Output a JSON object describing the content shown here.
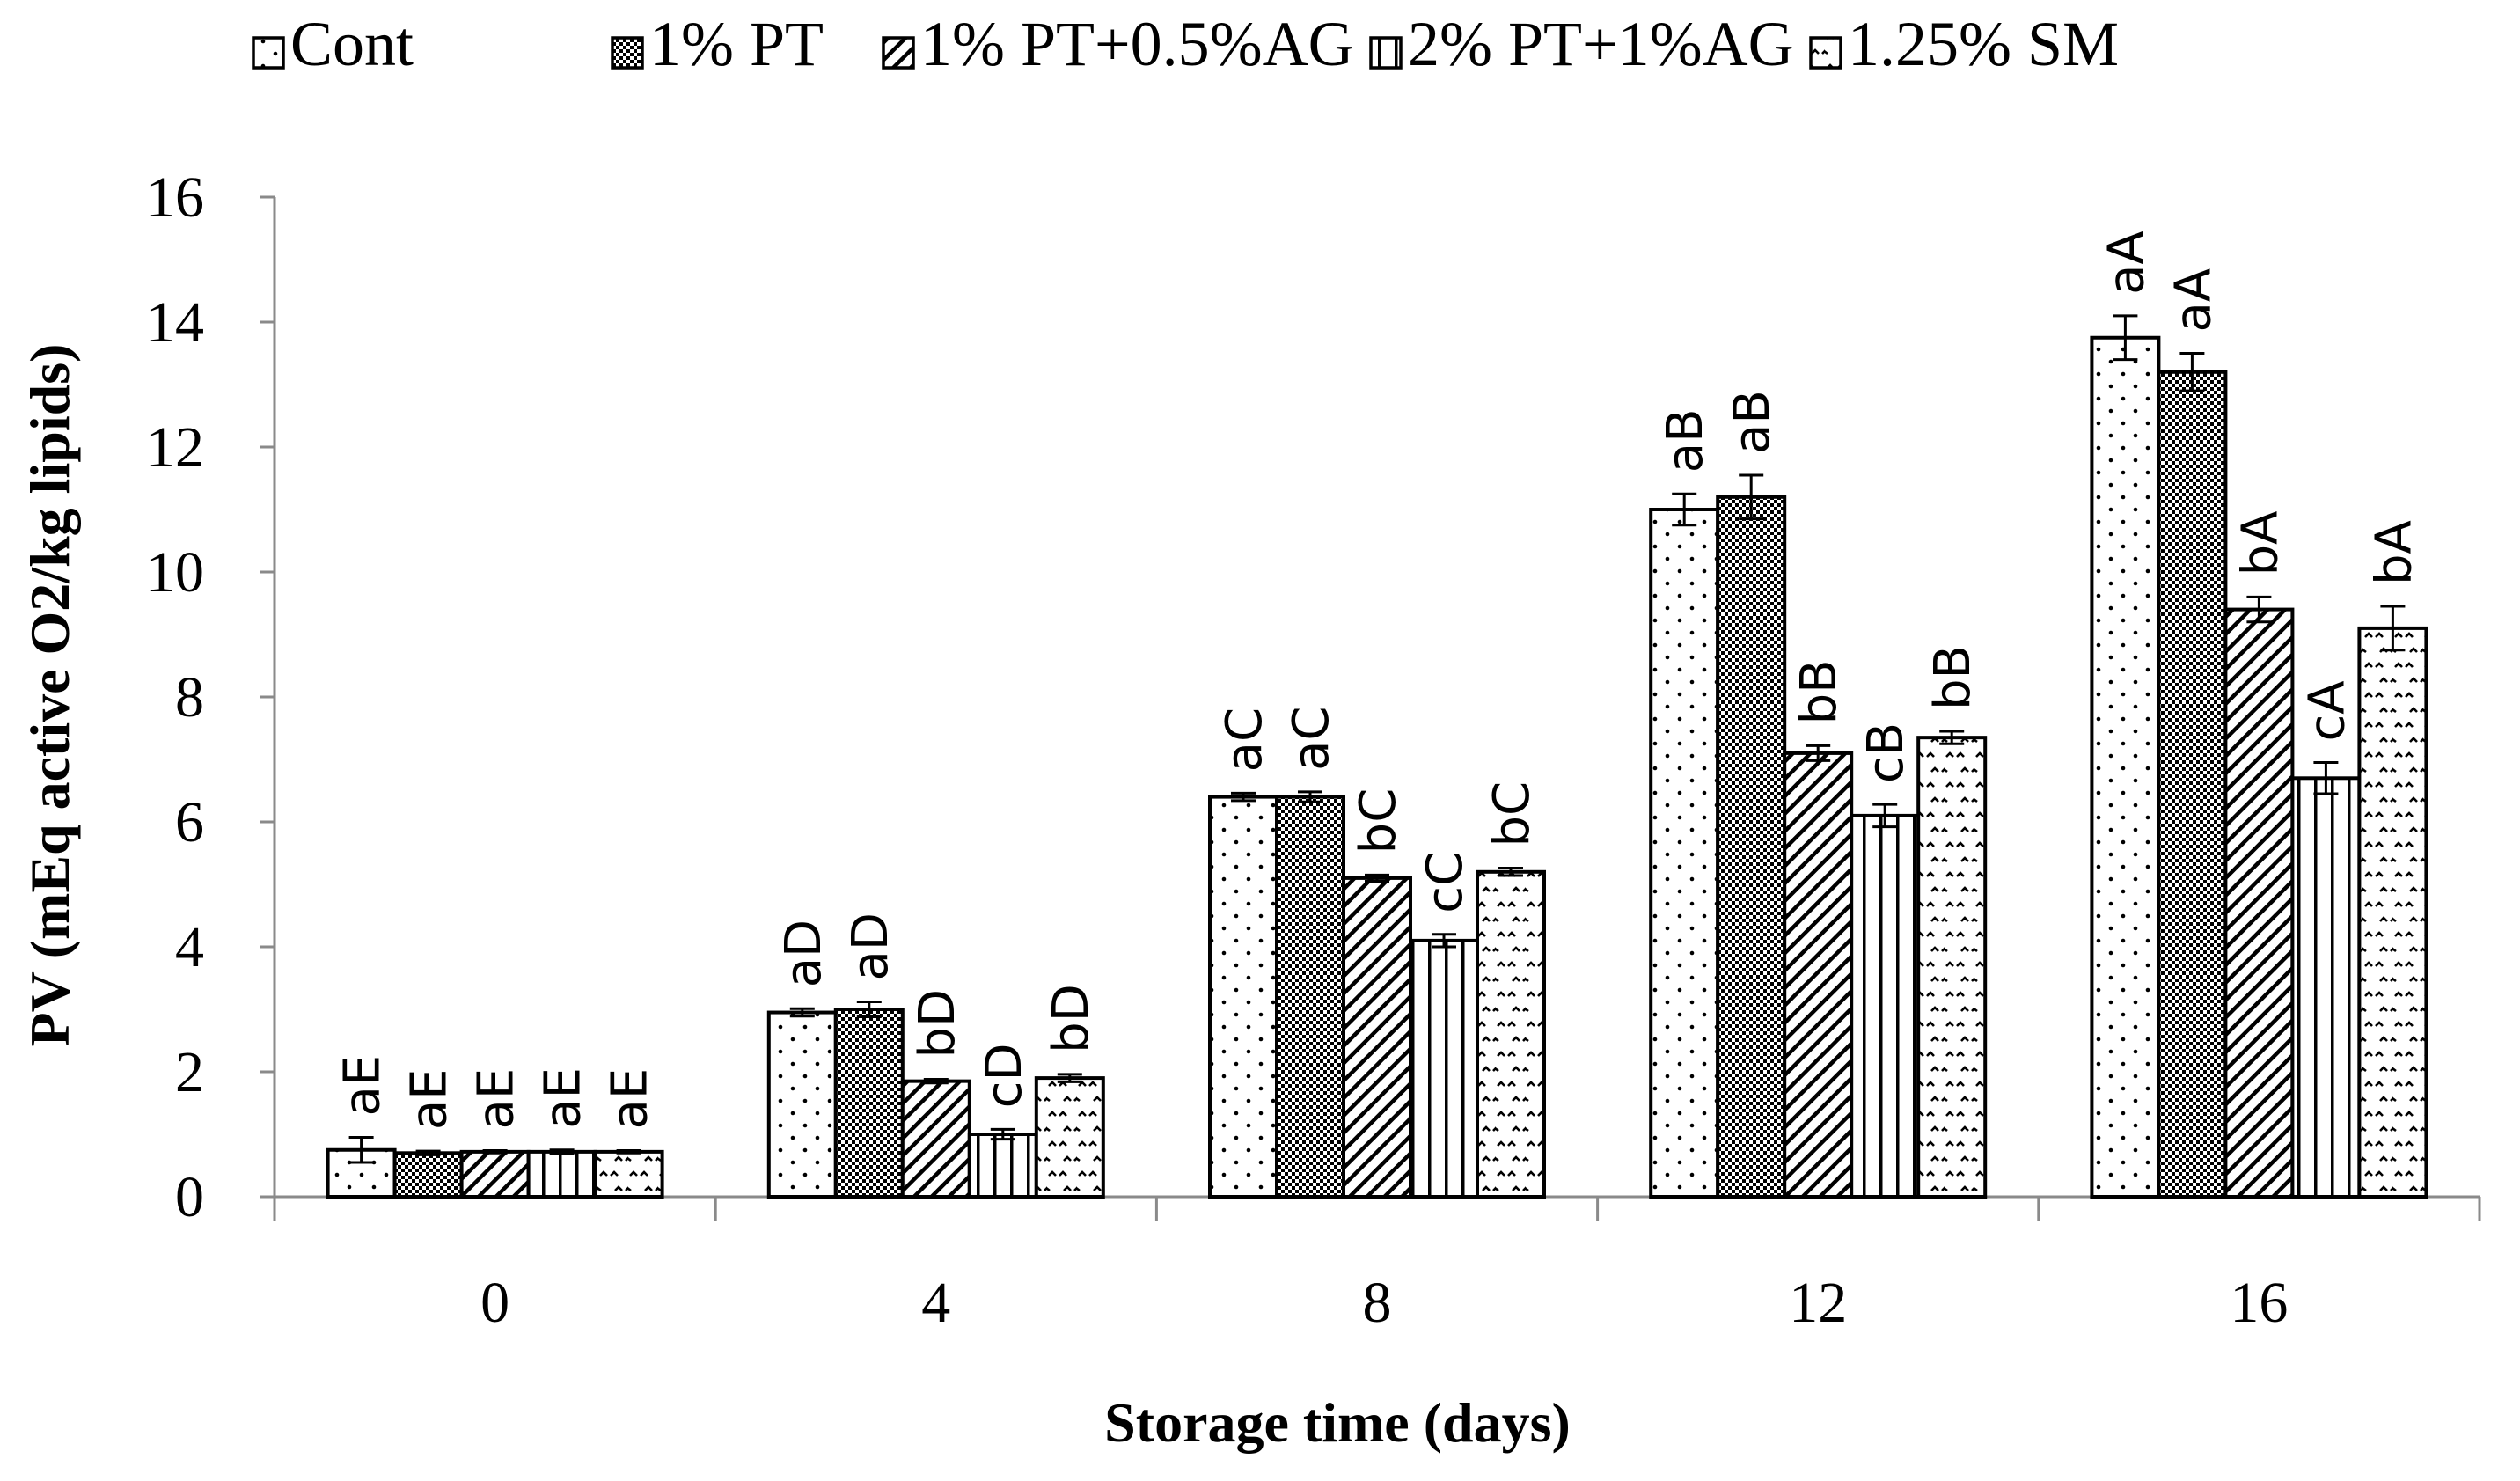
{
  "chart_data": {
    "type": "bar",
    "title": "",
    "xlabel": "Storage time (days)",
    "ylabel": "PV (mEq active O2/kg lipids)",
    "categories": [
      "0",
      "4",
      "8",
      "12",
      "16"
    ],
    "ylim": [
      0,
      16
    ],
    "yticks": [
      "0",
      "2",
      "4",
      "6",
      "8",
      "10",
      "12",
      "14",
      "16"
    ],
    "grid": false,
    "legend_position": "top",
    "series": [
      {
        "name": "Cont",
        "pattern": "dots",
        "values": [
          0.75,
          2.95,
          6.4,
          11.0,
          13.75
        ],
        "errors": [
          0.2,
          0.06,
          0.06,
          0.25,
          0.35
        ],
        "labels": [
          "aE",
          "aD",
          "aC",
          "aB",
          "aA"
        ]
      },
      {
        "name": "1% PT",
        "pattern": "checker",
        "values": [
          0.7,
          3.0,
          6.4,
          11.2,
          13.2
        ],
        "errors": [
          0.03,
          0.12,
          0.08,
          0.35,
          0.3
        ],
        "labels": [
          "aE",
          "aD",
          "aC",
          "aB",
          "aA"
        ]
      },
      {
        "name": "1% PT+0.5%AG",
        "pattern": "diagonal",
        "values": [
          0.72,
          1.85,
          5.1,
          7.1,
          9.4
        ],
        "errors": [
          0.02,
          0.03,
          0.05,
          0.12,
          0.2
        ],
        "labels": [
          "aE",
          "bD",
          "bC",
          "bB",
          "bA"
        ]
      },
      {
        "name": "2% PT+1%AG",
        "pattern": "vertical",
        "values": [
          0.72,
          1.0,
          4.1,
          6.1,
          6.7
        ],
        "errors": [
          0.03,
          0.08,
          0.1,
          0.18,
          0.25
        ],
        "labels": [
          "aE",
          "cD",
          "cC",
          "cB",
          "cA"
        ]
      },
      {
        "name": "1.25% SM",
        "pattern": "zigzag",
        "values": [
          0.72,
          1.9,
          5.2,
          7.35,
          9.1
        ],
        "errors": [
          0.02,
          0.06,
          0.06,
          0.1,
          0.35
        ],
        "labels": [
          "aE",
          "bD",
          "bC",
          "bB",
          "bA"
        ]
      }
    ]
  }
}
